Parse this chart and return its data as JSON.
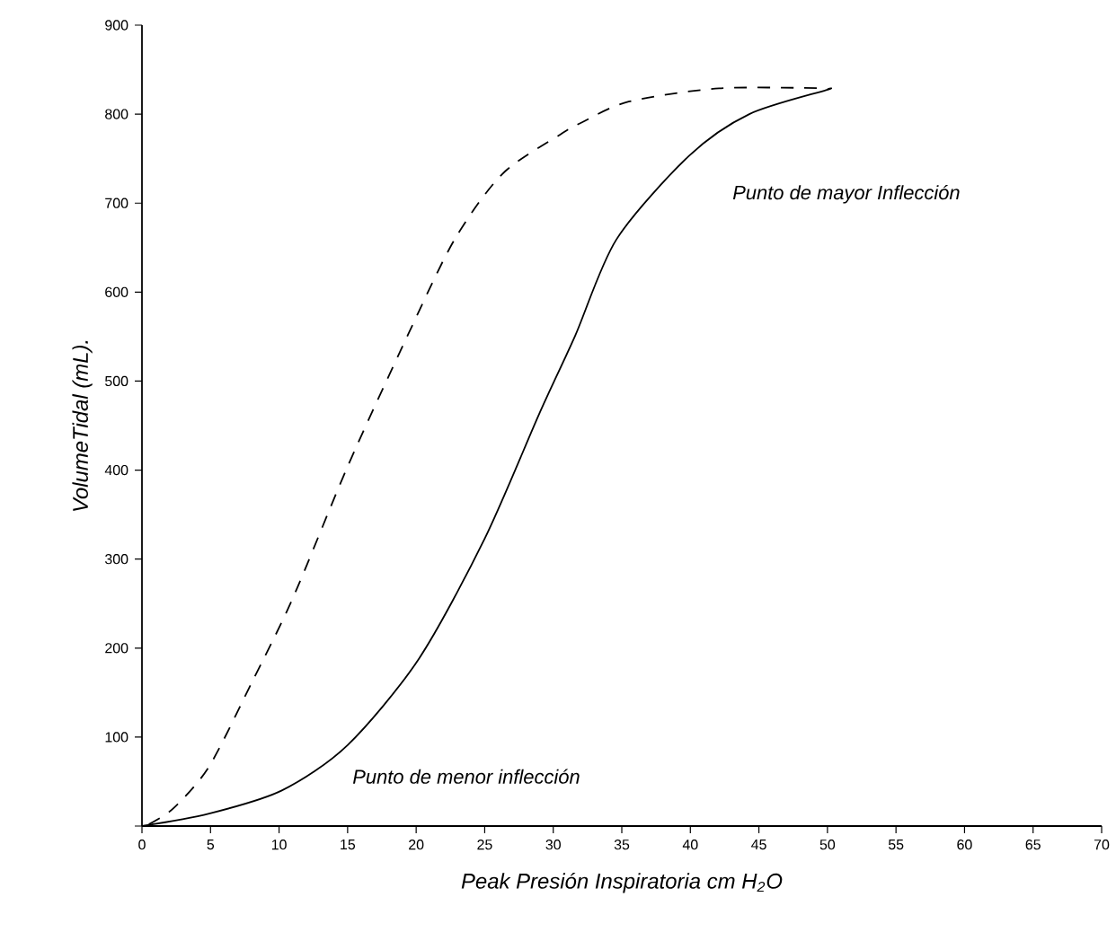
{
  "chart_data": {
    "type": "line",
    "xlabel": "Peak Presión Inspiratoria cm H$_{2}$O",
    "ylabel": "VolumeTidal (mL).",
    "xlim": [
      0,
      70
    ],
    "ylim": [
      0,
      900
    ],
    "xticks": [
      0,
      5,
      10,
      15,
      20,
      25,
      30,
      35,
      40,
      45,
      50,
      55,
      60,
      65,
      70
    ],
    "yticks": [
      {
        "value": 0,
        "label": null
      },
      100,
      200,
      300,
      400,
      500,
      600,
      700,
      800,
      900
    ],
    "grid": false,
    "legend": false,
    "marker": "none",
    "series": [
      {
        "color": "#000000",
        "line_style": "solid",
        "x": [
          0,
          4.9,
          10.2,
          15,
          20.2,
          25,
          29,
          31.6,
          34.6,
          39.9,
          44.3,
          49.9,
          50
        ],
        "values": [
          0,
          14,
          40,
          91,
          188,
          323,
          464,
          551,
          659,
          753,
          800,
          827,
          828
        ]
      },
      {
        "color": "#000000",
        "line_style": "dashed",
        "x": [
          0.5,
          2.3,
          4.9,
          8,
          11,
          15,
          19.4,
          22.8,
          26.3,
          30.5,
          32,
          35.5,
          42.1,
          49.9
        ],
        "values": [
          2,
          20,
          67,
          161,
          256,
          404,
          552,
          659,
          733,
          777,
          790,
          814,
          829,
          829
        ]
      }
    ],
    "annotations": [
      "Punto de mayor Inflección",
      "Punto de menor inflección"
    ]
  }
}
